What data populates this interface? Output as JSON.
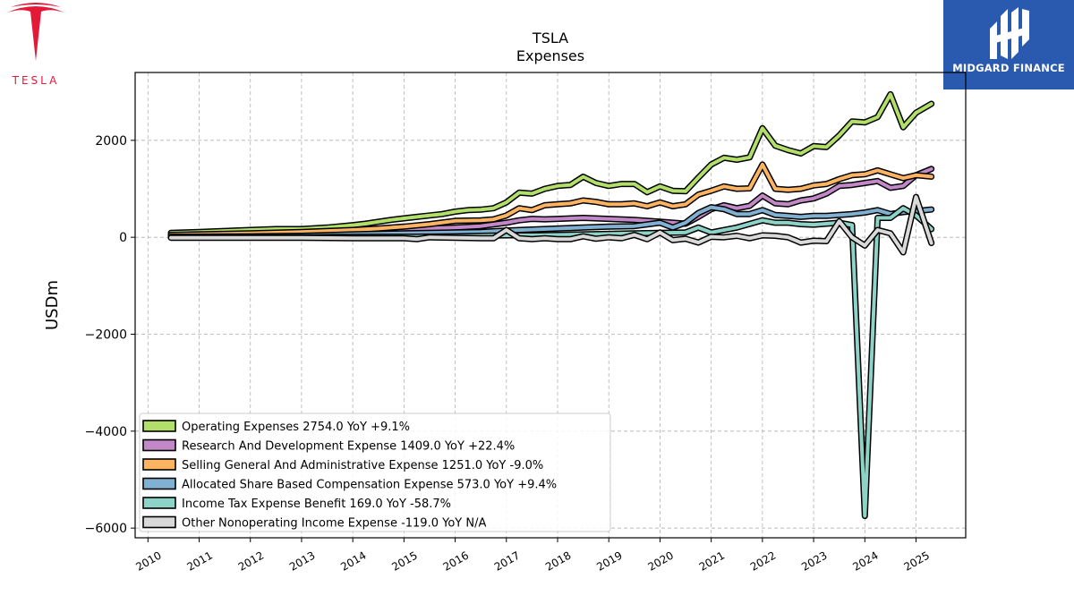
{
  "logos": {
    "left_text": "TESLA",
    "right_text": "MIDGARD FINANCE",
    "tesla_red": "#e31937",
    "midgard_blue": "#2a5ab0"
  },
  "chart_data": {
    "type": "line",
    "title": "TSLA",
    "subtitle": "Expenses",
    "xlabel": "",
    "ylabel": "USDm",
    "xlim": [
      2009.75,
      2025.97
    ],
    "ylim": [
      -6200,
      3400
    ],
    "yticks": [
      -6000,
      -4000,
      -2000,
      0,
      2000
    ],
    "xticks": [
      2010,
      2011,
      2012,
      2013,
      2014,
      2015,
      2016,
      2017,
      2018,
      2019,
      2020,
      2021,
      2022,
      2023,
      2024,
      2025
    ],
    "grid": true,
    "legend_position": "lower-left",
    "series": [
      {
        "name": "Operating Expenses",
        "legend_label": "Operating Expenses  2754.0 YoY +9.1%",
        "color": "#b2df6a",
        "x": [
          2010.45,
          2011.0,
          2011.5,
          2012.0,
          2012.5,
          2013.0,
          2013.5,
          2014.0,
          2014.25,
          2014.5,
          2014.75,
          2015.0,
          2015.25,
          2015.5,
          2015.75,
          2016.0,
          2016.25,
          2016.5,
          2016.75,
          2017.0,
          2017.25,
          2017.5,
          2017.75,
          2018.0,
          2018.25,
          2018.5,
          2018.75,
          2019.0,
          2019.25,
          2019.5,
          2019.75,
          2020.0,
          2020.25,
          2020.5,
          2020.75,
          2021.0,
          2021.25,
          2021.5,
          2021.75,
          2022.0,
          2022.25,
          2022.5,
          2022.75,
          2023.0,
          2023.25,
          2023.5,
          2023.75,
          2024.0,
          2024.25,
          2024.5,
          2024.75,
          2025.0,
          2025.3
        ],
        "values": [
          90,
          110,
          130,
          150,
          170,
          170,
          200,
          250,
          280,
          320,
          360,
          390,
          420,
          450,
          480,
          530,
          560,
          570,
          600,
          720,
          920,
          900,
          1000,
          1060,
          1080,
          1250,
          1120,
          1060,
          1100,
          1100,
          930,
          1050,
          960,
          950,
          1230,
          1500,
          1640,
          1600,
          1650,
          2250,
          1890,
          1800,
          1730,
          1880,
          1860,
          2100,
          2390,
          2370,
          2480,
          2950,
          2270,
          2570,
          2754
        ]
      },
      {
        "name": "Research And Development Expense",
        "legend_label": "Research And Development Expense  1409.0 YoY +22.4%",
        "color": "#c288c8",
        "x": [
          2010.45,
          2011.0,
          2012.0,
          2013.0,
          2014.0,
          2015.0,
          2015.5,
          2016.0,
          2016.5,
          2017.0,
          2017.25,
          2017.5,
          2017.75,
          2018.0,
          2018.5,
          2019.0,
          2019.5,
          2020.0,
          2020.5,
          2020.75,
          2021.0,
          2021.25,
          2021.5,
          2021.75,
          2022.0,
          2022.25,
          2022.5,
          2022.75,
          2023.0,
          2023.25,
          2023.5,
          2023.75,
          2024.0,
          2024.25,
          2024.5,
          2024.75,
          2025.0,
          2025.3
        ],
        "values": [
          40,
          50,
          70,
          60,
          100,
          160,
          180,
          200,
          230,
          300,
          350,
          380,
          370,
          380,
          400,
          380,
          360,
          320,
          280,
          420,
          580,
          660,
          600,
          650,
          860,
          700,
          680,
          760,
          800,
          900,
          1060,
          1080,
          1120,
          1160,
          1020,
          1060,
          1280,
          1409
        ]
      },
      {
        "name": "Selling General And Administrative Expense",
        "legend_label": "Selling General And Administrative Expense  1251.0 YoY -9.0%",
        "color": "#fdb462",
        "x": [
          2010.45,
          2011.0,
          2012.0,
          2013.0,
          2014.0,
          2014.5,
          2015.0,
          2015.5,
          2016.0,
          2016.5,
          2016.75,
          2017.0,
          2017.25,
          2017.5,
          2017.75,
          2018.0,
          2018.25,
          2018.5,
          2018.75,
          2019.0,
          2019.25,
          2019.5,
          2019.75,
          2020.0,
          2020.25,
          2020.5,
          2020.75,
          2021.0,
          2021.25,
          2021.5,
          2021.75,
          2022.0,
          2022.25,
          2022.5,
          2022.75,
          2023.0,
          2023.25,
          2023.5,
          2023.75,
          2024.0,
          2024.25,
          2024.5,
          2024.75,
          2025.0,
          2025.3
        ],
        "values": [
          50,
          60,
          80,
          110,
          150,
          180,
          220,
          270,
          340,
          350,
          370,
          450,
          600,
          560,
          660,
          680,
          700,
          760,
          730,
          680,
          680,
          700,
          640,
          720,
          640,
          680,
          880,
          960,
          1050,
          1000,
          1010,
          1500,
          1000,
          980,
          1000,
          1070,
          1100,
          1200,
          1280,
          1300,
          1380,
          1300,
          1220,
          1280,
          1251
        ]
      },
      {
        "name": "Allocated Share Based Compensation Expense",
        "legend_label": "Allocated Share Based Compensation Expense  573.0 YoY +9.4%",
        "color": "#80b1d3",
        "x": [
          2010.45,
          2011.0,
          2012.0,
          2013.0,
          2014.0,
          2015.0,
          2015.5,
          2016.0,
          2016.5,
          2017.0,
          2017.5,
          2018.0,
          2018.5,
          2019.0,
          2019.5,
          2020.0,
          2020.25,
          2020.5,
          2020.75,
          2021.0,
          2021.25,
          2021.5,
          2021.75,
          2022.0,
          2022.25,
          2022.5,
          2022.75,
          2023.0,
          2023.25,
          2023.5,
          2023.75,
          2024.0,
          2024.25,
          2024.5,
          2024.75,
          2025.0,
          2025.3
        ],
        "values": [
          10,
          15,
          20,
          30,
          60,
          80,
          90,
          100,
          110,
          140,
          160,
          180,
          200,
          220,
          230,
          300,
          200,
          300,
          500,
          620,
          580,
          480,
          480,
          560,
          460,
          440,
          420,
          440,
          440,
          460,
          480,
          510,
          560,
          480,
          520,
          540,
          573
        ]
      },
      {
        "name": "Income Tax Expense Benefit",
        "legend_label": "Income Tax Expense Benefit  169.0 YoY -58.7%",
        "color": "#8dd3c7",
        "x": [
          2010.45,
          2011.0,
          2012.0,
          2013.0,
          2014.0,
          2015.0,
          2016.0,
          2016.5,
          2017.0,
          2017.5,
          2018.0,
          2018.5,
          2019.0,
          2019.5,
          2020.0,
          2020.5,
          2020.75,
          2021.0,
          2021.5,
          2022.0,
          2022.25,
          2022.5,
          2022.75,
          2023.0,
          2023.5,
          2023.75,
          2024.0,
          2024.25,
          2024.5,
          2024.75,
          2025.0,
          2025.3
        ],
        "values": [
          0,
          0,
          0,
          0,
          10,
          10,
          20,
          30,
          40,
          40,
          50,
          60,
          70,
          80,
          90,
          100,
          200,
          100,
          200,
          350,
          300,
          300,
          270,
          260,
          300,
          250,
          -5750,
          400,
          400,
          600,
          450,
          169
        ]
      },
      {
        "name": "Other Nonoperating Income Expense",
        "legend_label": "Other Nonoperating Income Expense  -119.0 YoY N/A",
        "color": "#d9d9d9",
        "x": [
          2010.45,
          2011.0,
          2012.0,
          2013.0,
          2014.0,
          2015.0,
          2015.25,
          2015.5,
          2016.0,
          2016.5,
          2016.75,
          2017.0,
          2017.25,
          2017.5,
          2017.75,
          2018.0,
          2018.25,
          2018.5,
          2018.75,
          2019.0,
          2019.25,
          2019.5,
          2019.75,
          2020.0,
          2020.25,
          2020.5,
          2020.75,
          2021.0,
          2021.25,
          2021.5,
          2021.75,
          2022.0,
          2022.25,
          2022.5,
          2022.75,
          2023.0,
          2023.25,
          2023.5,
          2023.75,
          2024.0,
          2024.25,
          2024.5,
          2024.75,
          2025.0,
          2025.3
        ],
        "values": [
          -10,
          -10,
          -10,
          -10,
          -20,
          -20,
          -40,
          0,
          -10,
          -20,
          -20,
          150,
          -20,
          -40,
          -20,
          -40,
          -40,
          20,
          -30,
          0,
          -20,
          50,
          -40,
          100,
          -60,
          -30,
          -110,
          10,
          0,
          30,
          -20,
          40,
          30,
          0,
          -110,
          -70,
          -80,
          330,
          0,
          -170,
          150,
          80,
          -310,
          830,
          -119
        ]
      }
    ]
  }
}
